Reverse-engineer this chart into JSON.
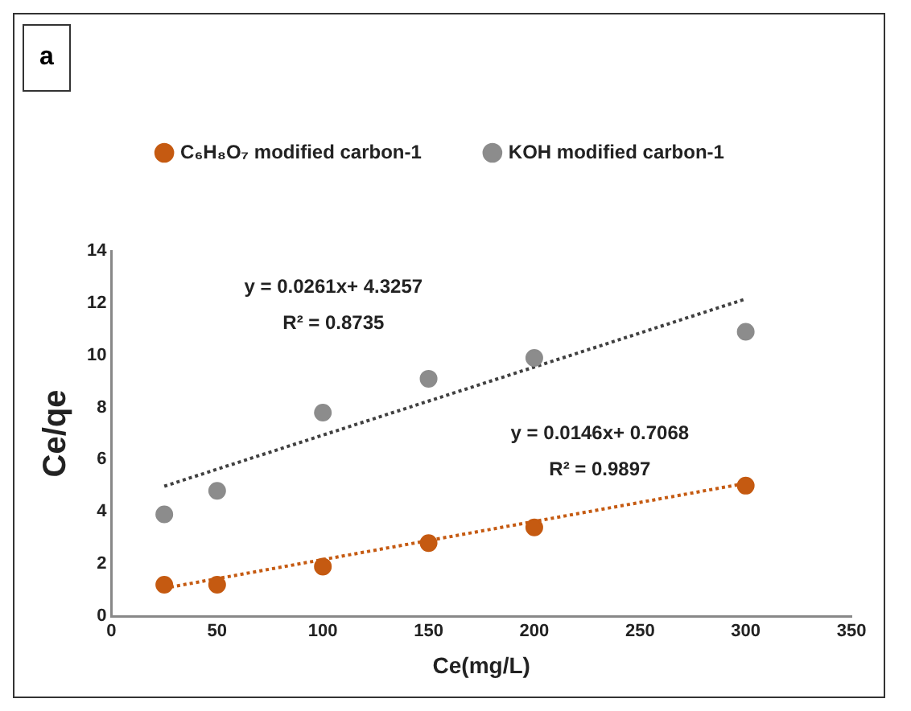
{
  "chart_data": {
    "type": "scatter",
    "xlabel": "Ce(mg/L)",
    "ylabel": "Ce/qe",
    "xlim": [
      0,
      350
    ],
    "xticks": [
      0,
      50,
      100,
      150,
      200,
      250,
      300,
      350
    ],
    "ylim": [
      0,
      14
    ],
    "yticks": [
      0,
      2,
      4,
      6,
      8,
      10,
      12,
      14
    ],
    "grid": false,
    "legend": "top",
    "marker": "circle",
    "x": [
      25,
      50,
      100,
      150,
      200,
      300
    ],
    "series": [
      {
        "name": "C₆H₈O₇ modified carbon-1",
        "color": "#c55a11",
        "values": [
          1.2,
          1.2,
          1.9,
          2.8,
          3.4,
          5.0
        ]
      },
      {
        "name": "KOH modified carbon-1",
        "color": "#8c8c8c",
        "values": [
          3.9,
          4.8,
          7.8,
          9.1,
          9.9,
          10.9
        ]
      },
      {
        "type": "line",
        "color": "#c55a11",
        "values": [
          1.07,
          null,
          null,
          null,
          null,
          5.09
        ],
        "marker": "none",
        "line_style": "dotted"
      },
      {
        "type": "line",
        "color": "#404040",
        "values": [
          4.98,
          null,
          null,
          null,
          null,
          12.16
        ],
        "marker": "none",
        "line_style": "dotted"
      }
    ],
    "annotations": [
      "a",
      "y = 0.0261x+ 4.3257",
      "R² = 0.8735",
      "y = 0.0146x+ 0.7068",
      "R² = 0.9897"
    ]
  }
}
